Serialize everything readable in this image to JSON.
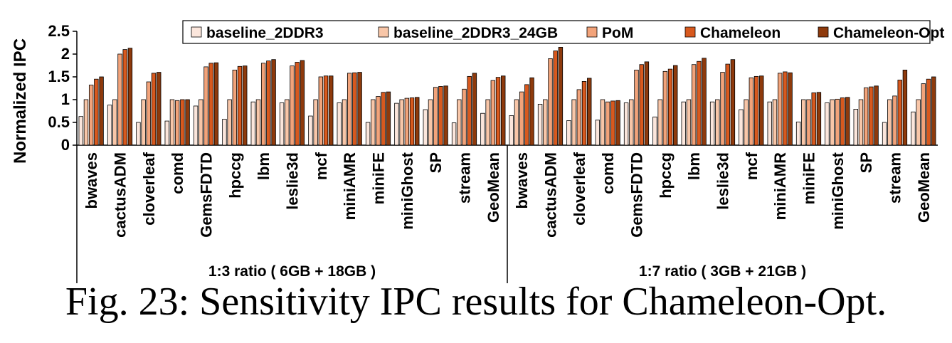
{
  "caption": "Fig. 23: Sensitivity IPC results for Chameleon-Opt.",
  "chart_data": {
    "type": "bar",
    "ylabel": "Normalized IPC",
    "ylim": [
      0,
      2.5
    ],
    "yticks": [
      "0",
      "0.5",
      "1",
      "1.5",
      "2",
      "2.5"
    ],
    "legend_position": "top",
    "colors": [
      "#fbe6dc",
      "#f8c6a8",
      "#f2a37a",
      "#d8591e",
      "#8e3a0c"
    ],
    "series_names": [
      "baseline_2DDR3",
      "baseline_2DDR3_24GB",
      "PoM",
      "Chameleon",
      "Chameleon-Opt"
    ],
    "groups": [
      {
        "label": "1:3 ratio ( 6GB + 18GB )",
        "categories": [
          "bwaves",
          "cactusADM",
          "cloverleaf",
          "comd",
          "GemsFDTD",
          "hpccg",
          "lbm",
          "leslie3d",
          "mcf",
          "miniAMR",
          "miniFE",
          "miniGhost",
          "SP",
          "stream",
          "GeoMean"
        ],
        "series": [
          {
            "name": "baseline_2DDR3",
            "values": [
              0.63,
              0.88,
              0.5,
              0.53,
              0.86,
              0.57,
              0.95,
              0.93,
              0.64,
              0.93,
              0.5,
              0.92,
              0.78,
              0.49,
              0.7
            ]
          },
          {
            "name": "baseline_2DDR3_24GB",
            "values": [
              1.0,
              1.0,
              1.0,
              1.0,
              1.0,
              1.0,
              1.0,
              1.0,
              1.0,
              1.0,
              1.0,
              1.0,
              1.0,
              1.0,
              1.0
            ]
          },
          {
            "name": "PoM",
            "values": [
              1.32,
              2.0,
              1.39,
              0.98,
              1.72,
              1.65,
              1.8,
              1.74,
              1.5,
              1.58,
              1.07,
              1.03,
              1.27,
              1.23,
              1.42
            ]
          },
          {
            "name": "Chameleon",
            "values": [
              1.45,
              2.1,
              1.58,
              1.0,
              1.8,
              1.73,
              1.85,
              1.82,
              1.52,
              1.59,
              1.16,
              1.04,
              1.29,
              1.51,
              1.49
            ]
          },
          {
            "name": "Chameleon-Opt",
            "values": [
              1.5,
              2.13,
              1.6,
              1.0,
              1.81,
              1.74,
              1.88,
              1.86,
              1.52,
              1.6,
              1.17,
              1.05,
              1.3,
              1.58,
              1.52
            ]
          }
        ]
      },
      {
        "label": "1:7 ratio ( 3GB + 21GB )",
        "categories": [
          "bwaves",
          "cactusADM",
          "cloverleaf",
          "comd",
          "GemsFDTD",
          "hpccg",
          "lbm",
          "leslie3d",
          "mcf",
          "miniAMR",
          "miniFE",
          "miniGhost",
          "SP",
          "stream",
          "GeoMean"
        ],
        "series": [
          {
            "name": "baseline_2DDR3",
            "values": [
              0.65,
              0.9,
              0.54,
              0.55,
              0.93,
              0.62,
              0.95,
              0.95,
              0.78,
              0.95,
              0.51,
              0.93,
              0.79,
              0.5,
              0.73
            ]
          },
          {
            "name": "baseline_2DDR3_24GB",
            "values": [
              1.0,
              1.0,
              1.0,
              1.0,
              1.0,
              1.0,
              1.0,
              1.0,
              1.0,
              1.0,
              1.0,
              1.0,
              1.0,
              1.0,
              1.0
            ]
          },
          {
            "name": "PoM",
            "values": [
              1.17,
              1.9,
              1.22,
              0.95,
              1.65,
              1.62,
              1.77,
              1.6,
              1.48,
              1.58,
              1.0,
              1.01,
              1.26,
              1.08,
              1.35
            ]
          },
          {
            "name": "Chameleon",
            "values": [
              1.33,
              2.07,
              1.4,
              0.97,
              1.77,
              1.67,
              1.84,
              1.78,
              1.51,
              1.61,
              1.15,
              1.04,
              1.28,
              1.43,
              1.45
            ]
          },
          {
            "name": "Chameleon-Opt",
            "values": [
              1.48,
              2.15,
              1.47,
              0.98,
              1.83,
              1.75,
              1.91,
              1.88,
              1.52,
              1.59,
              1.16,
              1.05,
              1.3,
              1.65,
              1.5
            ]
          }
        ]
      }
    ]
  }
}
